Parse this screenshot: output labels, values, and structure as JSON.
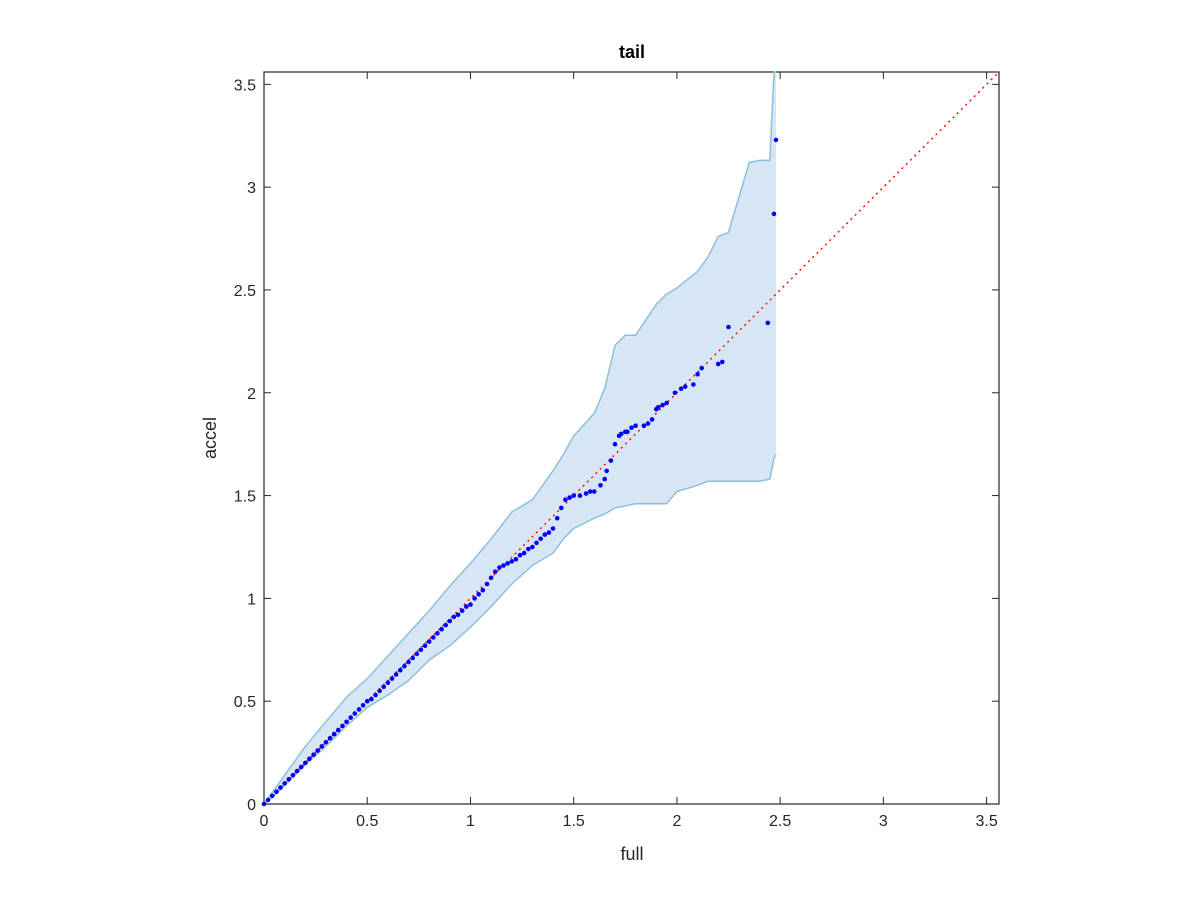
{
  "chart_data": {
    "type": "scatter",
    "title": "tail",
    "xlabel": "full",
    "ylabel": "accel",
    "xlim": [
      0,
      3.56
    ],
    "ylim": [
      0,
      3.56
    ],
    "xticks": [
      "0",
      "0.5",
      "1",
      "1.5",
      "2",
      "2.5",
      "3",
      "3.5"
    ],
    "yticks": [
      "0",
      "0.5",
      "1",
      "1.5",
      "2",
      "2.5",
      "3",
      "3.5"
    ],
    "grid": false,
    "legend": "none",
    "colors": {
      "points": "#0000ff",
      "reference_line": "#ff0000",
      "band_fill": "#d6e6f4",
      "band_edge": "#8dbfdd",
      "axes": "#262626"
    },
    "reference_line": {
      "x": [
        0,
        3.56
      ],
      "y": [
        0,
        3.56
      ],
      "style": "dotted"
    },
    "confidence_band": {
      "x": [
        0,
        0.05,
        0.1,
        0.15,
        0.2,
        0.3,
        0.4,
        0.5,
        0.6,
        0.7,
        0.8,
        0.9,
        1.0,
        1.1,
        1.2,
        1.3,
        1.4,
        1.45,
        1.5,
        1.6,
        1.65,
        1.7,
        1.75,
        1.8,
        1.9,
        1.95,
        2.0,
        2.1,
        2.15,
        2.2,
        2.25,
        2.35,
        2.4,
        2.45,
        2.47,
        2.48
      ],
      "upper": [
        0,
        0.07,
        0.14,
        0.21,
        0.28,
        0.4,
        0.52,
        0.61,
        0.72,
        0.83,
        0.94,
        1.06,
        1.17,
        1.29,
        1.42,
        1.48,
        1.62,
        1.7,
        1.79,
        1.9,
        2.02,
        2.23,
        2.28,
        2.28,
        2.43,
        2.48,
        2.51,
        2.59,
        2.66,
        2.76,
        2.78,
        3.12,
        3.13,
        3.13,
        3.56,
        3.56
      ],
      "lower": [
        0,
        0.04,
        0.09,
        0.14,
        0.19,
        0.28,
        0.38,
        0.47,
        0.53,
        0.6,
        0.7,
        0.77,
        0.86,
        0.96,
        1.07,
        1.16,
        1.22,
        1.29,
        1.34,
        1.39,
        1.41,
        1.44,
        1.45,
        1.46,
        1.46,
        1.46,
        1.52,
        1.55,
        1.57,
        1.57,
        1.57,
        1.57,
        1.57,
        1.58,
        1.68,
        1.7
      ]
    },
    "x": [
      0,
      0.02,
      0.04,
      0.06,
      0.08,
      0.1,
      0.12,
      0.14,
      0.16,
      0.18,
      0.2,
      0.22,
      0.24,
      0.26,
      0.28,
      0.3,
      0.32,
      0.34,
      0.36,
      0.38,
      0.4,
      0.42,
      0.44,
      0.46,
      0.48,
      0.5,
      0.52,
      0.54,
      0.56,
      0.58,
      0.6,
      0.62,
      0.64,
      0.66,
      0.68,
      0.7,
      0.72,
      0.74,
      0.76,
      0.78,
      0.8,
      0.82,
      0.84,
      0.86,
      0.88,
      0.9,
      0.92,
      0.94,
      0.96,
      0.98,
      1.0,
      1.02,
      1.04,
      1.06,
      1.08,
      1.1,
      1.12,
      1.14,
      1.16,
      1.18,
      1.2,
      1.22,
      1.24,
      1.26,
      1.28,
      1.3,
      1.32,
      1.34,
      1.36,
      1.38,
      1.4,
      1.42,
      1.44,
      1.46,
      1.48,
      1.5,
      1.53,
      1.56,
      1.58,
      1.6,
      1.63,
      1.65,
      1.66,
      1.68,
      1.7,
      1.72,
      1.73,
      1.75,
      1.76,
      1.78,
      1.8,
      1.84,
      1.86,
      1.88,
      1.9,
      1.91,
      1.93,
      1.95,
      1.99,
      2.02,
      2.04,
      2.08,
      2.1,
      2.12,
      2.2,
      2.22,
      2.25,
      2.44,
      2.47,
      2.48
    ],
    "y": [
      0,
      0.02,
      0.04,
      0.06,
      0.08,
      0.1,
      0.12,
      0.14,
      0.16,
      0.18,
      0.2,
      0.22,
      0.24,
      0.26,
      0.28,
      0.3,
      0.32,
      0.34,
      0.36,
      0.38,
      0.4,
      0.42,
      0.44,
      0.46,
      0.48,
      0.5,
      0.51,
      0.53,
      0.55,
      0.57,
      0.59,
      0.61,
      0.63,
      0.65,
      0.67,
      0.69,
      0.71,
      0.73,
      0.75,
      0.77,
      0.79,
      0.81,
      0.83,
      0.85,
      0.87,
      0.89,
      0.91,
      0.92,
      0.94,
      0.96,
      0.97,
      1.0,
      1.02,
      1.04,
      1.07,
      1.1,
      1.13,
      1.15,
      1.16,
      1.17,
      1.18,
      1.19,
      1.21,
      1.22,
      1.24,
      1.25,
      1.27,
      1.29,
      1.31,
      1.32,
      1.34,
      1.39,
      1.44,
      1.48,
      1.49,
      1.5,
      1.5,
      1.51,
      1.52,
      1.52,
      1.55,
      1.58,
      1.62,
      1.67,
      1.75,
      1.79,
      1.8,
      1.81,
      1.81,
      1.83,
      1.84,
      1.84,
      1.85,
      1.87,
      1.92,
      1.93,
      1.94,
      1.95,
      2.0,
      2.02,
      2.03,
      2.04,
      2.09,
      2.12,
      2.14,
      2.15,
      2.32,
      2.34,
      2.87,
      3.23
    ]
  }
}
